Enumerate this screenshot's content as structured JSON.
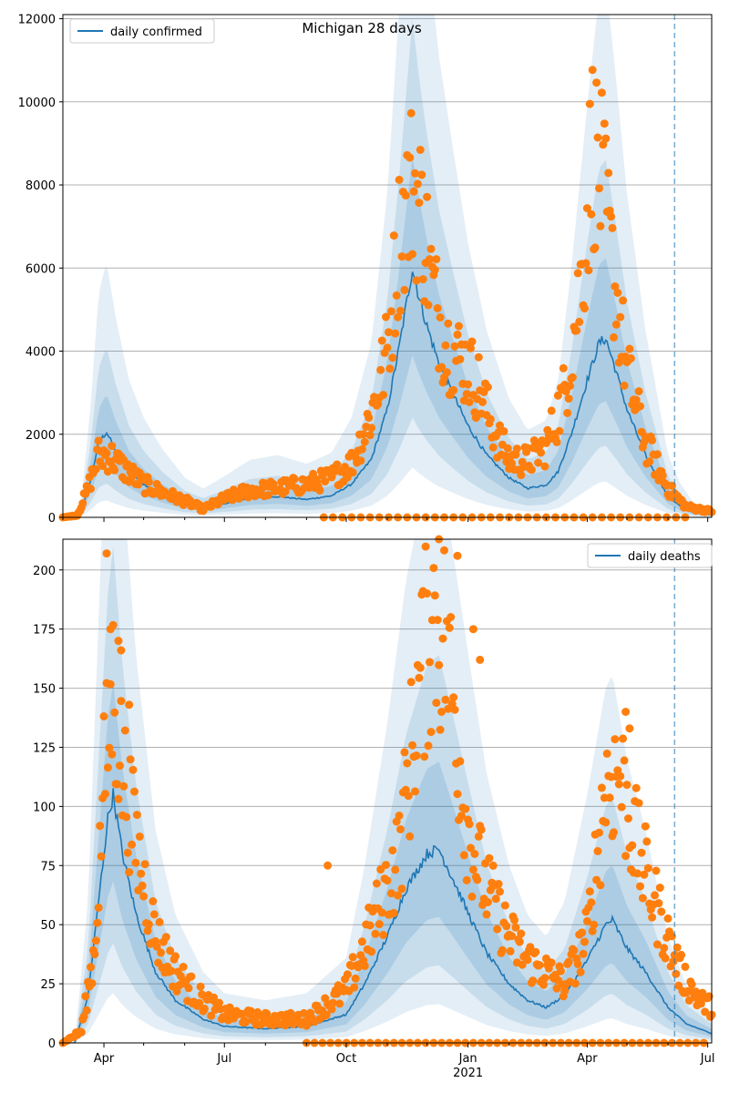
{
  "chart_data": {
    "title": "Michigan 28 days",
    "type": "line",
    "x_ticks": [
      {
        "date": "2020-04-01",
        "label": "Apr"
      },
      {
        "date": "2020-07-01",
        "label": "Jul"
      },
      {
        "date": "2020-10-01",
        "label": "Oct"
      },
      {
        "date": "2021-01-01",
        "label": "Jan"
      },
      {
        "date": "2021-04-01",
        "label": "Apr"
      },
      {
        "date": "2021-07-01",
        "label": "Jul"
      }
    ],
    "x_year_label": "2021",
    "xlim": [
      "2020-03-01",
      "2021-07-04"
    ],
    "forecast_start": "2021-06-06",
    "colors": {
      "line": "#1f77b4",
      "points": "#ff7f0e",
      "band": "#1f77b4",
      "grid": "#b0b0b0",
      "forecast": "#1f77b4"
    },
    "panels": [
      {
        "id": "confirmed",
        "ylim": [
          0,
          12100
        ],
        "y_ticks": [
          0,
          2000,
          4000,
          6000,
          8000,
          10000,
          12000
        ],
        "legend": {
          "label": "daily confirmed",
          "position": "upper left"
        },
        "line_keypoints": [
          [
            "2020-03-01",
            0
          ],
          [
            "2020-03-08",
            0
          ],
          [
            "2020-03-15",
            150
          ],
          [
            "2020-03-22",
            900
          ],
          [
            "2020-03-28",
            1800
          ],
          [
            "2020-04-03",
            2050
          ],
          [
            "2020-04-10",
            1600
          ],
          [
            "2020-04-20",
            1100
          ],
          [
            "2020-05-01",
            800
          ],
          [
            "2020-05-15",
            550
          ],
          [
            "2020-06-01",
            320
          ],
          [
            "2020-06-15",
            230
          ],
          [
            "2020-07-01",
            330
          ],
          [
            "2020-07-20",
            460
          ],
          [
            "2020-08-10",
            500
          ],
          [
            "2020-09-01",
            430
          ],
          [
            "2020-09-20",
            520
          ],
          [
            "2020-10-05",
            800
          ],
          [
            "2020-10-20",
            1400
          ],
          [
            "2020-11-01",
            2600
          ],
          [
            "2020-11-10",
            4100
          ],
          [
            "2020-11-20",
            6000
          ],
          [
            "2020-11-25",
            5300
          ],
          [
            "2020-12-01",
            4600
          ],
          [
            "2020-12-10",
            3700
          ],
          [
            "2020-12-20",
            3000
          ],
          [
            "2021-01-01",
            2200
          ],
          [
            "2021-01-15",
            1500
          ],
          [
            "2021-02-01",
            950
          ],
          [
            "2021-02-15",
            700
          ],
          [
            "2021-03-01",
            780
          ],
          [
            "2021-03-10",
            1100
          ],
          [
            "2021-03-20",
            2000
          ],
          [
            "2021-04-01",
            3300
          ],
          [
            "2021-04-10",
            4200
          ],
          [
            "2021-04-15",
            4300
          ],
          [
            "2021-04-22",
            3600
          ],
          [
            "2021-05-01",
            2600
          ],
          [
            "2021-05-15",
            1500
          ],
          [
            "2021-06-01",
            500
          ],
          [
            "2021-06-10",
            280
          ],
          [
            "2021-06-20",
            120
          ],
          [
            "2021-07-04",
            60
          ]
        ],
        "points_keypoints": [
          [
            "2020-03-01",
            0
          ],
          [
            "2020-03-12",
            50
          ],
          [
            "2020-03-20",
            700
          ],
          [
            "2020-03-28",
            1500
          ],
          [
            "2020-04-05",
            1500
          ],
          [
            "2020-04-15",
            1200
          ],
          [
            "2020-05-01",
            800
          ],
          [
            "2020-05-15",
            600
          ],
          [
            "2020-06-01",
            400
          ],
          [
            "2020-06-15",
            200
          ],
          [
            "2020-07-01",
            450
          ],
          [
            "2020-07-20",
            650
          ],
          [
            "2020-08-10",
            700
          ],
          [
            "2020-09-01",
            800
          ],
          [
            "2020-09-20",
            950
          ],
          [
            "2020-10-05",
            1300
          ],
          [
            "2020-10-20",
            2500
          ],
          [
            "2020-11-01",
            4000
          ],
          [
            "2020-11-10",
            6700
          ],
          [
            "2020-11-20",
            8100
          ],
          [
            "2020-11-28",
            7200
          ],
          [
            "2020-12-05",
            5500
          ],
          [
            "2020-12-15",
            4200
          ],
          [
            "2021-01-01",
            3600
          ],
          [
            "2021-01-10",
            3100
          ],
          [
            "2021-01-20",
            2100
          ],
          [
            "2021-02-01",
            1400
          ],
          [
            "2021-02-15",
            1350
          ],
          [
            "2021-03-01",
            1700
          ],
          [
            "2021-03-15",
            3000
          ],
          [
            "2021-03-28",
            5800
          ],
          [
            "2021-04-05",
            9000
          ],
          [
            "2021-04-12",
            8000
          ],
          [
            "2021-04-20",
            6000
          ],
          [
            "2021-05-01",
            3500
          ],
          [
            "2021-05-15",
            1800
          ],
          [
            "2021-06-01",
            700
          ],
          [
            "2021-06-15",
            250
          ],
          [
            "2021-07-04",
            150
          ]
        ],
        "zero_markers": {
          "from": "2020-09-14",
          "to": "2021-06-20",
          "step_days": 7
        }
      },
      {
        "id": "deaths",
        "ylim": [
          0,
          213
        ],
        "y_ticks": [
          0,
          25,
          50,
          75,
          100,
          125,
          150,
          175,
          200
        ],
        "legend": {
          "label": "daily deaths",
          "position": "upper right"
        },
        "line_keypoints": [
          [
            "2020-03-01",
            0
          ],
          [
            "2020-03-10",
            0
          ],
          [
            "2020-03-20",
            20
          ],
          [
            "2020-03-28",
            60
          ],
          [
            "2020-04-04",
            95
          ],
          [
            "2020-04-08",
            105
          ],
          [
            "2020-04-15",
            80
          ],
          [
            "2020-04-25",
            55
          ],
          [
            "2020-05-10",
            30
          ],
          [
            "2020-05-25",
            18
          ],
          [
            "2020-06-15",
            10
          ],
          [
            "2020-07-01",
            7
          ],
          [
            "2020-08-01",
            6
          ],
          [
            "2020-09-01",
            7
          ],
          [
            "2020-10-01",
            12
          ],
          [
            "2020-10-15",
            25
          ],
          [
            "2020-11-01",
            45
          ],
          [
            "2020-11-15",
            65
          ],
          [
            "2020-12-01",
            80
          ],
          [
            "2020-12-10",
            82
          ],
          [
            "2020-12-20",
            70
          ],
          [
            "2021-01-01",
            55
          ],
          [
            "2021-01-15",
            38
          ],
          [
            "2021-02-01",
            25
          ],
          [
            "2021-02-15",
            18
          ],
          [
            "2021-03-01",
            15
          ],
          [
            "2021-03-15",
            20
          ],
          [
            "2021-04-01",
            35
          ],
          [
            "2021-04-15",
            50
          ],
          [
            "2021-04-20",
            52
          ],
          [
            "2021-05-01",
            40
          ],
          [
            "2021-05-15",
            30
          ],
          [
            "2021-06-01",
            15
          ],
          [
            "2021-06-15",
            8
          ],
          [
            "2021-07-04",
            4
          ]
        ],
        "points_keypoints": [
          [
            "2020-03-01",
            0
          ],
          [
            "2020-03-15",
            5
          ],
          [
            "2020-03-25",
            40
          ],
          [
            "2020-04-01",
            110
          ],
          [
            "2020-04-08",
            150
          ],
          [
            "2020-04-15",
            115
          ],
          [
            "2020-04-25",
            85
          ],
          [
            "2020-05-10",
            45
          ],
          [
            "2020-05-25",
            30
          ],
          [
            "2020-06-10",
            20
          ],
          [
            "2020-07-01",
            12
          ],
          [
            "2020-08-01",
            10
          ],
          [
            "2020-09-01",
            10
          ],
          [
            "2020-10-01",
            22
          ],
          [
            "2020-10-20",
            48
          ],
          [
            "2020-11-10",
            80
          ],
          [
            "2020-11-25",
            150
          ],
          [
            "2020-12-05",
            180
          ],
          [
            "2020-12-15",
            170
          ],
          [
            "2021-01-01",
            90
          ],
          [
            "2021-01-15",
            65
          ],
          [
            "2021-02-01",
            45
          ],
          [
            "2021-02-15",
            35
          ],
          [
            "2021-03-01",
            30
          ],
          [
            "2021-03-15",
            25
          ],
          [
            "2021-04-01",
            45
          ],
          [
            "2021-04-15",
            110
          ],
          [
            "2021-04-25",
            115
          ],
          [
            "2021-05-10",
            80
          ],
          [
            "2021-05-25",
            55
          ],
          [
            "2021-06-10",
            30
          ],
          [
            "2021-06-25",
            18
          ],
          [
            "2021-07-04",
            15
          ]
        ],
        "outliers": [
          [
            "2020-04-03",
            207
          ],
          [
            "2020-04-06",
            175
          ],
          [
            "2020-04-12",
            170
          ],
          [
            "2020-04-14",
            166
          ],
          [
            "2020-04-20",
            143
          ],
          [
            "2020-09-17",
            75
          ],
          [
            "2020-12-10",
            213
          ],
          [
            "2020-12-24",
            206
          ],
          [
            "2021-01-05",
            175
          ],
          [
            "2021-01-10",
            162
          ],
          [
            "2021-04-30",
            140
          ],
          [
            "2021-05-03",
            133
          ]
        ],
        "zero_markers": {
          "from": "2020-09-01",
          "to": "2021-06-30",
          "step_days": 6
        }
      }
    ]
  }
}
